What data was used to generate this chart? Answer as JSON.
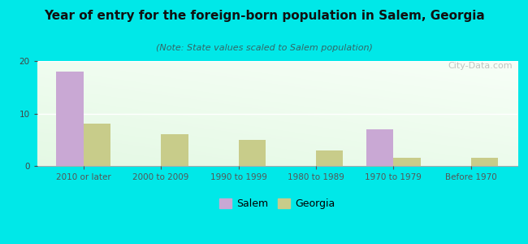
{
  "title": "Year of entry for the foreign-born population in Salem, Georgia",
  "subtitle": "(Note: State values scaled to Salem population)",
  "categories": [
    "2010 or later",
    "2000 to 2009",
    "1990 to 1999",
    "1980 to 1989",
    "1970 to 1979",
    "Before 1970"
  ],
  "salem_values": [
    18,
    0,
    0,
    0,
    7,
    0
  ],
  "georgia_values": [
    8,
    6,
    5,
    3,
    1.5,
    1.5
  ],
  "salem_color": "#c9a8d4",
  "georgia_color": "#c8cc8a",
  "background_outer": "#00e8e8",
  "ylim": [
    0,
    20
  ],
  "yticks": [
    0,
    10,
    20
  ],
  "bar_width": 0.35,
  "title_fontsize": 11,
  "subtitle_fontsize": 8,
  "tick_fontsize": 7.5,
  "legend_fontsize": 9,
  "watermark_text": "City-Data.com"
}
